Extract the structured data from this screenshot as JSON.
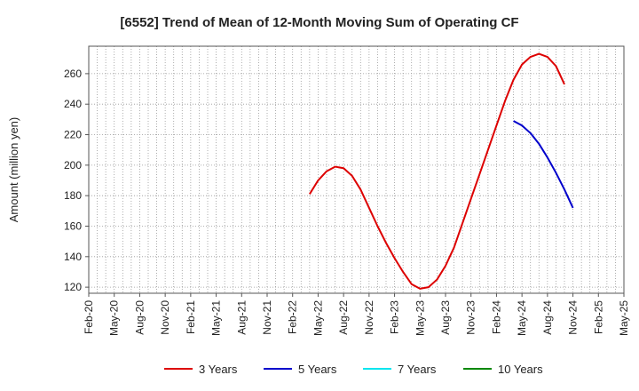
{
  "chart_data": {
    "type": "line",
    "title": "[6552]  Trend of Mean of 12-Month Moving Sum of Operating CF",
    "xlabel": "",
    "ylabel": "Amount (million yen)",
    "ylim": [
      116,
      278
    ],
    "yticks": [
      120,
      140,
      160,
      180,
      200,
      220,
      240,
      260
    ],
    "x_tick_labels": [
      "Feb-20",
      "May-20",
      "Aug-20",
      "Nov-20",
      "Feb-21",
      "May-21",
      "Aug-21",
      "Nov-21",
      "Feb-22",
      "May-22",
      "Aug-22",
      "Nov-22",
      "Feb-23",
      "May-23",
      "Aug-23",
      "Nov-23",
      "Feb-24",
      "May-24",
      "Aug-24",
      "Nov-24",
      "Feb-25",
      "May-25"
    ],
    "x_start_month": "Feb-20",
    "x_end_month": "May-25",
    "grid": true,
    "legend_position": "bottom",
    "series": [
      {
        "name": "3 Years",
        "color": "#dd0000",
        "start_month": "Apr-22",
        "values": [
          181,
          190,
          196,
          199,
          198,
          193,
          184,
          172,
          160,
          149,
          139,
          130,
          122,
          119,
          120,
          125,
          134,
          146,
          162,
          178,
          194,
          210,
          226,
          242,
          256,
          266,
          271,
          273,
          271,
          265,
          253
        ]
      },
      {
        "name": "5 Years",
        "color": "#0000cc",
        "start_month": "Apr-24",
        "values": [
          229,
          226,
          221,
          214,
          205,
          195,
          184,
          172
        ]
      },
      {
        "name": "7 Years",
        "color": "#00e5ee",
        "start_month": null,
        "values": []
      },
      {
        "name": "10 Years",
        "color": "#008800",
        "start_month": null,
        "values": []
      }
    ]
  }
}
